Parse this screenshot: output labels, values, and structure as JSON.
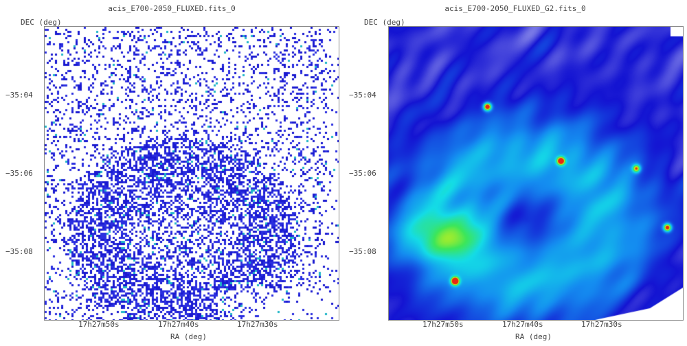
{
  "panels": [
    {
      "title": "acis_E700-2050_FLUXED.fits_0",
      "y_axis_label": "DEC (deg)",
      "x_axis_label": "RA (deg)",
      "y_ticks": [
        "−35:04",
        "−35:06",
        "−35:08"
      ],
      "x_ticks": [
        "17h27m50s",
        "17h27m40s",
        "17h27m30s"
      ],
      "colormap": "sparse blue pixel map"
    },
    {
      "title": "acis_E700-2050_FLUXED_G2.fits_0",
      "y_axis_label": "DEC (deg)",
      "x_axis_label": "RA (deg)",
      "y_ticks": [
        "−35:04",
        "−35:06",
        "−35:08"
      ],
      "x_ticks": [
        "17h27m50s",
        "17h27m40s",
        "17h27m30s"
      ],
      "colormap": "smoothed rainbow (blue-cyan-green-yellow-red)"
    }
  ]
}
